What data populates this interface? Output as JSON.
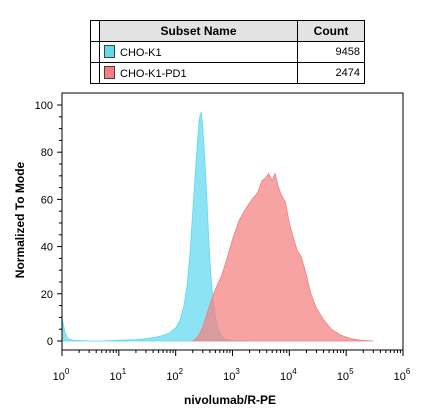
{
  "legend_table": {
    "headers": {
      "name": "Subset Name",
      "count": "Count"
    },
    "rows": [
      {
        "name": "CHO-K1",
        "count": "9458",
        "color": "#5fd8f0"
      },
      {
        "name": "CHO-K1-PD1",
        "count": "2474",
        "color": "#f47f7f"
      }
    ]
  },
  "chart_data": {
    "type": "area",
    "xlabel": "nivolumab/R-PE",
    "ylabel": "Normalized To Mode",
    "xscale": "log",
    "xlim": [
      1,
      1000000
    ],
    "ylim": [
      0,
      103
    ],
    "x_ticks": [
      {
        "base": "10",
        "exp": "0"
      },
      {
        "base": "10",
        "exp": "1"
      },
      {
        "base": "10",
        "exp": "2"
      },
      {
        "base": "10",
        "exp": "3"
      },
      {
        "base": "10",
        "exp": "4"
      },
      {
        "base": "10",
        "exp": "5"
      },
      {
        "base": "10",
        "exp": "6"
      }
    ],
    "y_ticks": [
      "0",
      "20",
      "40",
      "60",
      "80",
      "100"
    ],
    "grid": false,
    "series": [
      {
        "name": "CHO-K1",
        "color": "#5fd8f0",
        "opacity": 0.72,
        "points": [
          [
            1,
            10
          ],
          [
            1.12,
            4
          ],
          [
            1.26,
            1
          ],
          [
            1.6,
            0.3
          ],
          [
            3,
            0
          ],
          [
            5,
            0
          ],
          [
            10,
            0.3
          ],
          [
            20,
            0.6
          ],
          [
            30,
            1
          ],
          [
            45,
            1.6
          ],
          [
            63,
            2.5
          ],
          [
            79,
            3.5
          ],
          [
            100,
            5.5
          ],
          [
            120,
            9
          ],
          [
            140,
            15
          ],
          [
            160,
            24
          ],
          [
            180,
            38
          ],
          [
            200,
            55
          ],
          [
            220,
            70
          ],
          [
            240,
            83
          ],
          [
            255,
            92
          ],
          [
            265,
            95
          ],
          [
            280,
            97
          ],
          [
            295,
            92
          ],
          [
            310,
            85
          ],
          [
            330,
            75
          ],
          [
            355,
            60
          ],
          [
            380,
            44
          ],
          [
            410,
            30
          ],
          [
            450,
            18
          ],
          [
            500,
            10
          ],
          [
            560,
            5
          ],
          [
            630,
            2.5
          ],
          [
            700,
            1.2
          ],
          [
            800,
            0.5
          ],
          [
            1000,
            0.1
          ],
          [
            2000,
            0
          ]
        ]
      },
      {
        "name": "CHO-K1-PD1",
        "color": "#f47f7f",
        "opacity": 0.72,
        "points": [
          [
            200,
            0
          ],
          [
            250,
            2
          ],
          [
            300,
            6
          ],
          [
            350,
            11
          ],
          [
            420,
            17
          ],
          [
            500,
            22
          ],
          [
            650,
            28
          ],
          [
            800,
            35
          ],
          [
            1000,
            43
          ],
          [
            1300,
            51
          ],
          [
            1700,
            56
          ],
          [
            2200,
            60
          ],
          [
            2800,
            63
          ],
          [
            3300,
            68
          ],
          [
            3800,
            69
          ],
          [
            4300,
            71
          ],
          [
            5000,
            68
          ],
          [
            5600,
            71
          ],
          [
            6300,
            66
          ],
          [
            7200,
            62
          ],
          [
            8500,
            59
          ],
          [
            10000,
            50
          ],
          [
            12000,
            43
          ],
          [
            14000,
            38
          ],
          [
            16000,
            36
          ],
          [
            19000,
            30
          ],
          [
            24000,
            20
          ],
          [
            30000,
            14
          ],
          [
            40000,
            9
          ],
          [
            55000,
            5
          ],
          [
            80000,
            2.5
          ],
          [
            120000,
            1
          ],
          [
            180000,
            0.3
          ],
          [
            300000,
            0
          ]
        ]
      }
    ]
  }
}
